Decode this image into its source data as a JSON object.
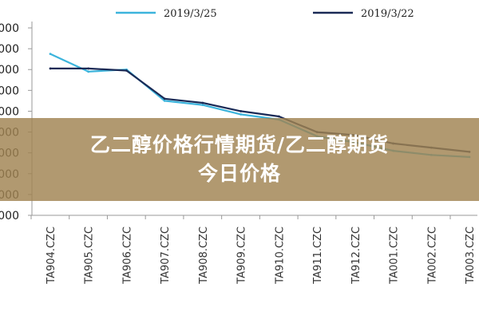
{
  "chart_data": {
    "type": "line",
    "categories": [
      "TA904.CZC",
      "TA905.CZC",
      "TA906.CZC",
      "TA907.CZC",
      "TA908.CZC",
      "TA909.CZC",
      "TA910.CZC",
      "TA911.CZC",
      "TA912.CZC",
      "TA001.CZC",
      "TA002.CZC",
      "TA003.CZC"
    ],
    "y_tick_labels": [
      "000",
      "000",
      "000",
      "000",
      "000",
      "000",
      "000",
      "000",
      "000",
      "000"
    ],
    "ylim": [
      0,
      9
    ],
    "series": [
      {
        "name": "2019/3/25",
        "color": "#3cb4dc",
        "values": [
          7.75,
          6.9,
          7.0,
          5.5,
          5.3,
          4.85,
          4.6,
          3.8,
          3.5,
          3.1,
          2.9,
          2.8
        ]
      },
      {
        "name": "2019/3/22",
        "color": "#1a2a56",
        "values": [
          7.05,
          7.05,
          6.95,
          5.6,
          5.4,
          5.0,
          4.75,
          4.0,
          3.85,
          3.45,
          3.25,
          3.05
        ]
      }
    ],
    "legend_position": "top",
    "grid": false
  },
  "overlay": {
    "line1": "乙二醇价格行情期货/乙二醇期货",
    "line2": "今日价格"
  }
}
